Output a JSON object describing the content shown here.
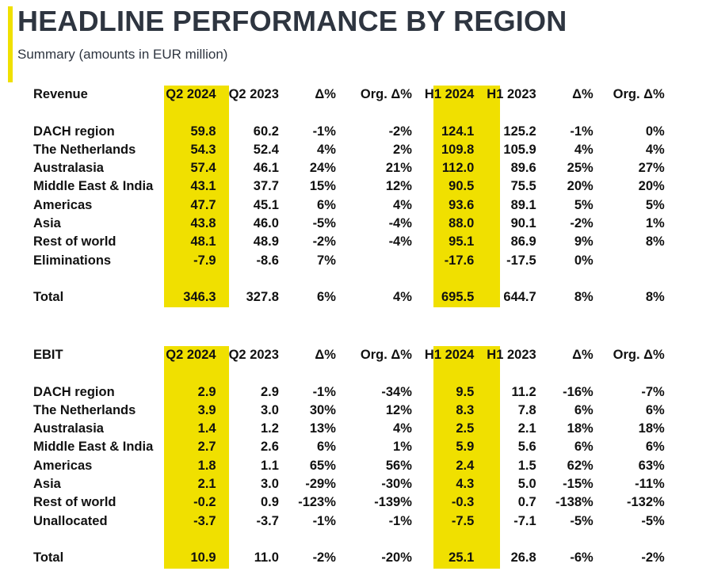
{
  "header": {
    "title": "HEADLINE PERFORMANCE BY REGION",
    "subtitle": "Summary (amounts in EUR million)"
  },
  "colors": {
    "highlight": "#f0e000",
    "title": "#2e3540"
  },
  "revenue": {
    "headers": [
      "Revenue",
      "Q2 2024",
      "Q2 2023",
      "Δ%",
      "Org. Δ%",
      "H1 2024",
      "H1 2023",
      "Δ%",
      "Org. Δ%"
    ],
    "rows": [
      [
        "DACH region",
        "59.8",
        "60.2",
        "-1%",
        "-2%",
        "124.1",
        "125.2",
        "-1%",
        "0%"
      ],
      [
        "The Netherlands",
        "54.3",
        "52.4",
        "4%",
        "2%",
        "109.8",
        "105.9",
        "4%",
        "4%"
      ],
      [
        "Australasia",
        "57.4",
        "46.1",
        "24%",
        "21%",
        "112.0",
        "89.6",
        "25%",
        "27%"
      ],
      [
        "Middle East & India",
        "43.1",
        "37.7",
        "15%",
        "12%",
        "90.5",
        "75.5",
        "20%",
        "20%"
      ],
      [
        "Americas",
        "47.7",
        "45.1",
        "6%",
        "4%",
        "93.6",
        "89.1",
        "5%",
        "5%"
      ],
      [
        "Asia",
        "43.8",
        "46.0",
        "-5%",
        "-4%",
        "88.0",
        "90.1",
        "-2%",
        "1%"
      ],
      [
        "Rest of world",
        "48.1",
        "48.9",
        "-2%",
        "-4%",
        "95.1",
        "86.9",
        "9%",
        "8%"
      ],
      [
        "Eliminations",
        "-7.9",
        "-8.6",
        "7%",
        "",
        "-17.6",
        "-17.5",
        "0%",
        ""
      ]
    ],
    "total": [
      "Total",
      "346.3",
      "327.8",
      "6%",
      "4%",
      "695.5",
      "644.7",
      "8%",
      "8%"
    ]
  },
  "ebit": {
    "headers": [
      "EBIT",
      "Q2 2024",
      "Q2 2023",
      "Δ%",
      "Org. Δ%",
      "H1 2024",
      "H1 2023",
      "Δ%",
      "Org. Δ%"
    ],
    "rows": [
      [
        "DACH region",
        "2.9",
        "2.9",
        "-1%",
        "-34%",
        "9.5",
        "11.2",
        "-16%",
        "-7%"
      ],
      [
        "The Netherlands",
        "3.9",
        "3.0",
        "30%",
        "12%",
        "8.3",
        "7.8",
        "6%",
        "6%"
      ],
      [
        "Australasia",
        "1.4",
        "1.2",
        "13%",
        "4%",
        "2.5",
        "2.1",
        "18%",
        "18%"
      ],
      [
        "Middle East & India",
        "2.7",
        "2.6",
        "6%",
        "1%",
        "5.9",
        "5.6",
        "6%",
        "6%"
      ],
      [
        "Americas",
        "1.8",
        "1.1",
        "65%",
        "56%",
        "2.4",
        "1.5",
        "62%",
        "63%"
      ],
      [
        "Asia",
        "2.1",
        "3.0",
        "-29%",
        "-30%",
        "4.3",
        "5.0",
        "-15%",
        "-11%"
      ],
      [
        "Rest of world",
        "-0.2",
        "0.9",
        "-123%",
        "-139%",
        "-0.3",
        "0.7",
        "-138%",
        "-132%"
      ],
      [
        "Unallocated",
        "-3.7",
        "-3.7",
        "-1%",
        "-1%",
        "-7.5",
        "-7.1",
        "-5%",
        "-5%"
      ]
    ],
    "total": [
      "Total",
      "10.9",
      "11.0",
      "-2%",
      "-20%",
      "25.1",
      "26.8",
      "-6%",
      "-2%"
    ]
  }
}
